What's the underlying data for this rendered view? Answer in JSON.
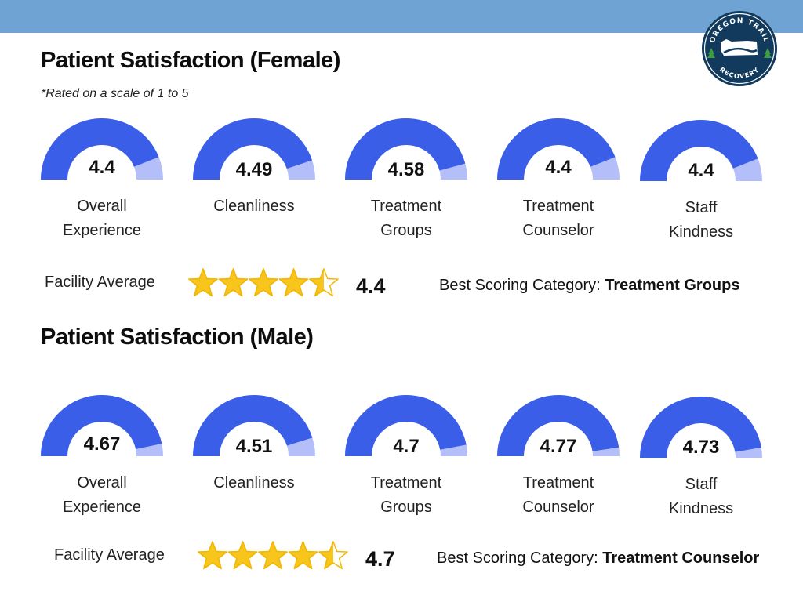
{
  "colors": {
    "topbar": "#6fa3d4",
    "gauge_fill": "#3b5ee8",
    "gauge_remainder": "#b4bffa",
    "star": "#f7c51c",
    "star_outline": "#f2b705",
    "logo_navy": "#123a5c"
  },
  "logo": {
    "text_top": "OREGON TRAIL",
    "text_bottom": "RECOVERY",
    "icon": "oregon-map-with-trees-icon"
  },
  "chart_data": [
    {
      "type": "gauge",
      "title": "Patient Satisfaction (Female)",
      "note": "*Rated on a scale of 1 to 5",
      "scale": [
        0,
        5
      ],
      "categories": [
        {
          "label_lines": [
            "Overall",
            "Experience"
          ],
          "value": 4.4,
          "display": "4.4"
        },
        {
          "label_lines": [
            "Cleanliness"
          ],
          "value": 4.49,
          "display": "4.49"
        },
        {
          "label_lines": [
            "Treatment",
            "Groups"
          ],
          "value": 4.58,
          "display": "4.58"
        },
        {
          "label_lines": [
            "Treatment",
            "Counselor"
          ],
          "value": 4.4,
          "display": "4.4"
        },
        {
          "label_lines": [
            "Staff",
            "Kindness"
          ],
          "value": 4.4,
          "display": "4.4"
        }
      ],
      "facility_average": {
        "label": "Facility Average",
        "value": 4.4,
        "display": "4.4",
        "stars_filled": 4.5,
        "stars_total": 5
      },
      "best": {
        "prefix": "Best Scoring Category: ",
        "category": "Treatment Groups"
      }
    },
    {
      "type": "gauge",
      "title": "Patient Satisfaction (Male)",
      "note": "",
      "scale": [
        0,
        5
      ],
      "categories": [
        {
          "label_lines": [
            "Overall",
            "Experience"
          ],
          "value": 4.67,
          "display": "4.67"
        },
        {
          "label_lines": [
            "Cleanliness"
          ],
          "value": 4.51,
          "display": "4.51"
        },
        {
          "label_lines": [
            "Treatment",
            "Groups"
          ],
          "value": 4.7,
          "display": "4.7"
        },
        {
          "label_lines": [
            "Treatment",
            "Counselor"
          ],
          "value": 4.77,
          "display": "4.77"
        },
        {
          "label_lines": [
            "Staff",
            "Kindness"
          ],
          "value": 4.73,
          "display": "4.73"
        }
      ],
      "facility_average": {
        "label": "Facility Average",
        "value": 4.7,
        "display": "4.7",
        "stars_filled": 4.5,
        "stars_total": 5
      },
      "best": {
        "prefix": "Best Scoring Category: ",
        "category": "Treatment Counselor"
      }
    }
  ]
}
